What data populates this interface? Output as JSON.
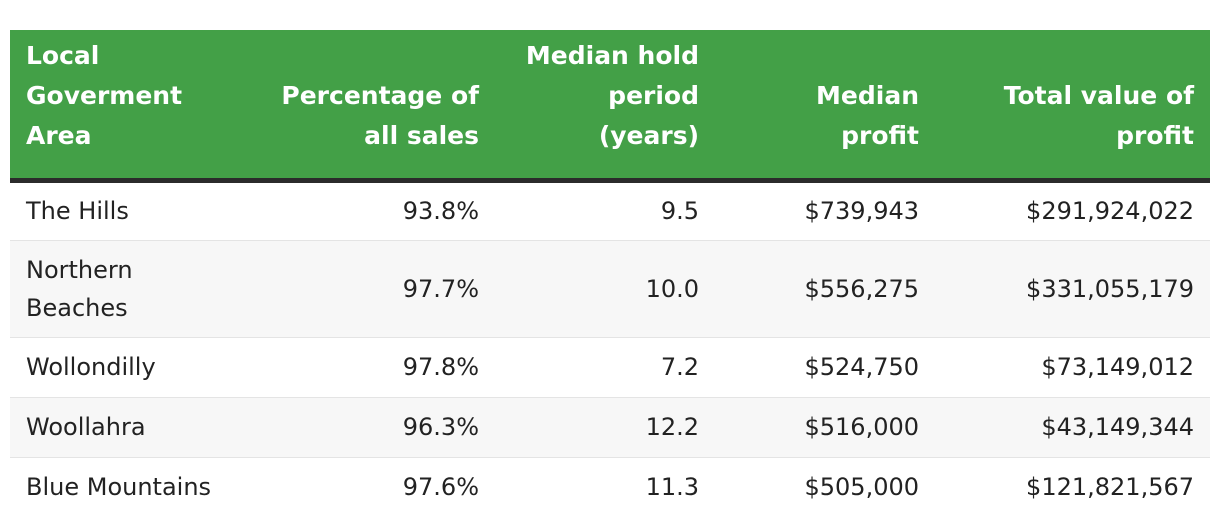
{
  "table": {
    "headers": [
      "Local Goverment Area",
      "Percentage of all sales",
      "Median hold period (years)",
      "Median profit",
      "Total value of profit"
    ],
    "rows": [
      [
        "The Hills",
        "93.8%",
        "9.5",
        "$739,943",
        "$291,924,022"
      ],
      [
        "Northern Beaches",
        "97.7%",
        "10.0",
        "$556,275",
        "$331,055,179"
      ],
      [
        "Wollondilly",
        "97.8%",
        "7.2",
        "$524,750",
        "$73,149,012"
      ],
      [
        "Woollahra",
        "96.3%",
        "12.2",
        "$516,000",
        "$43,149,344"
      ],
      [
        "Blue Mountains",
        "97.6%",
        "11.3",
        "$505,000",
        "$121,821,567"
      ]
    ],
    "colors": {
      "header_bg": "#43a047",
      "header_text": "#ffffff",
      "header_rule": "#2b2b2b",
      "row_alt_bg": "#f7f7f7"
    }
  }
}
